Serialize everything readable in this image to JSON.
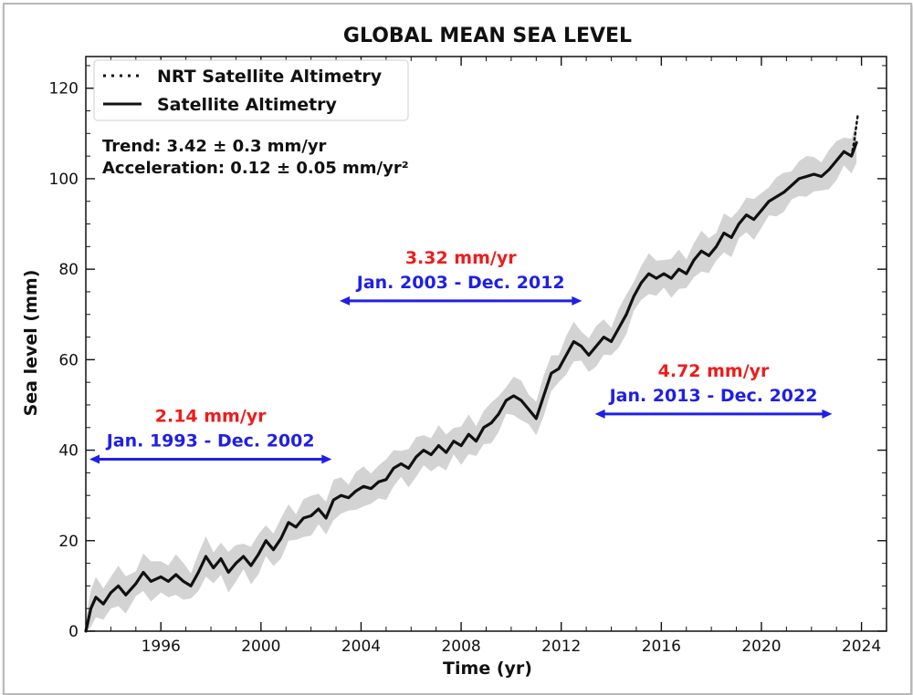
{
  "chart_data": {
    "type": "line",
    "title": "GLOBAL MEAN SEA LEVEL",
    "xlabel": "Time (yr)",
    "ylabel": "Sea level (mm)",
    "xlim": [
      1993.0,
      2025.0
    ],
    "ylim": [
      0,
      127
    ],
    "xticks": [
      1996,
      2000,
      2004,
      2008,
      2012,
      2016,
      2020,
      2024
    ],
    "yticks": [
      0,
      20,
      40,
      60,
      80,
      100,
      120
    ],
    "legend": {
      "position": "top-left",
      "entries": [
        {
          "label": "NRT Satellite Altimetry",
          "style": "dotted"
        },
        {
          "label": "Satellite Altimetry",
          "style": "solid"
        }
      ]
    },
    "stats": {
      "trend": "Trend: 3.42 ± 0.3 mm/yr",
      "acceleration": "Acceleration: 0.12 ± 0.05 mm/yr²"
    },
    "annotations": [
      {
        "rate": "2.14 mm/yr",
        "period": "Jan. 1993 - Dec. 2002",
        "x_from": 1993.0,
        "x_to": 2002.9,
        "y": 38
      },
      {
        "rate": "3.32 mm/yr",
        "period": "Jan. 2003 - Dec. 2012",
        "x_from": 2003.0,
        "x_to": 2012.9,
        "y": 73
      },
      {
        "rate": "4.72 mm/yr",
        "period": "Jan. 2013 - Dec. 2022",
        "x_from": 2013.2,
        "x_to": 2022.9,
        "y": 48
      }
    ],
    "uncertainty_band_mm": 4.5,
    "series": [
      {
        "name": "Satellite Altimetry",
        "style": "solid",
        "x": [
          1993.0,
          1993.2,
          1993.4,
          1993.7,
          1994.0,
          1994.3,
          1994.6,
          1995.0,
          1995.3,
          1995.6,
          1996.0,
          1996.3,
          1996.6,
          1996.9,
          1997.2,
          1997.5,
          1997.8,
          1998.1,
          1998.4,
          1998.7,
          1999.0,
          1999.3,
          1999.6,
          1999.9,
          2000.2,
          2000.5,
          2000.8,
          2001.1,
          2001.4,
          2001.7,
          2002.0,
          2002.3,
          2002.6,
          2002.9,
          2003.2,
          2003.5,
          2003.8,
          2004.1,
          2004.4,
          2004.7,
          2005.0,
          2005.3,
          2005.6,
          2005.9,
          2006.2,
          2006.5,
          2006.8,
          2007.1,
          2007.4,
          2007.7,
          2008.0,
          2008.3,
          2008.6,
          2008.9,
          2009.2,
          2009.5,
          2009.8,
          2010.1,
          2010.4,
          2010.7,
          2011.0,
          2011.3,
          2011.6,
          2011.9,
          2012.2,
          2012.5,
          2012.8,
          2013.1,
          2013.4,
          2013.7,
          2014.0,
          2014.3,
          2014.6,
          2014.9,
          2015.2,
          2015.5,
          2015.8,
          2016.1,
          2016.4,
          2016.7,
          2017.0,
          2017.3,
          2017.6,
          2017.9,
          2018.2,
          2018.5,
          2018.8,
          2019.1,
          2019.4,
          2019.7,
          2020.0,
          2020.3,
          2020.6,
          2020.9,
          2021.2,
          2021.5,
          2021.8,
          2022.1,
          2022.4,
          2022.7,
          2023.0,
          2023.3,
          2023.6,
          2023.8
        ],
        "values": [
          0,
          5,
          7.5,
          6,
          8.5,
          10,
          8,
          10.5,
          13,
          11,
          12,
          11,
          12.5,
          11,
          10,
          13,
          16.5,
          14,
          16,
          13,
          15,
          16.5,
          14.5,
          17,
          20,
          18,
          20.5,
          24,
          23,
          25,
          25.5,
          27,
          25,
          29,
          30,
          29.5,
          31,
          32,
          31.5,
          33,
          33.5,
          36,
          37,
          36,
          38.5,
          40,
          39,
          41,
          39.5,
          42,
          41,
          43.5,
          42,
          45,
          46,
          48,
          51,
          52,
          51,
          49,
          47,
          52,
          57,
          58,
          61,
          64,
          63,
          61,
          63,
          65,
          64,
          67,
          70,
          74,
          77,
          79,
          78,
          79,
          78,
          80,
          79,
          82,
          84,
          83,
          85,
          88,
          87,
          90,
          92,
          91,
          93,
          95,
          96,
          97,
          98.5,
          100,
          100.5,
          101,
          100.5,
          102,
          104,
          106,
          105,
          108
        ]
      },
      {
        "name": "NRT Satellite Altimetry",
        "style": "dotted",
        "x": [
          2023.6,
          2023.7,
          2023.8,
          2023.85
        ],
        "values": [
          105,
          108,
          112,
          114
        ]
      }
    ]
  }
}
